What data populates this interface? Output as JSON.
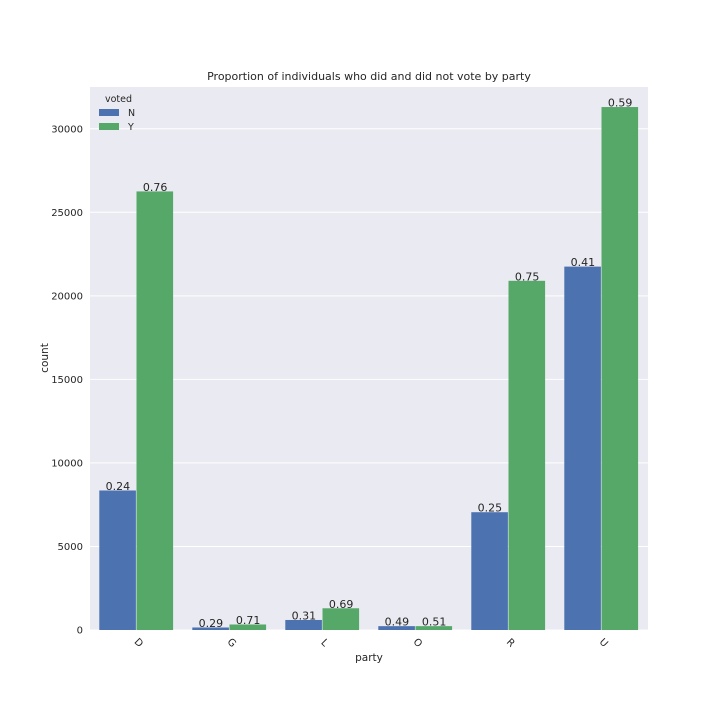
{
  "chart_data": {
    "type": "bar",
    "title": "Proportion of individuals who did and did not vote by party",
    "xlabel": "party",
    "ylabel": "count",
    "categories": [
      "D",
      "G",
      "L",
      "O",
      "R",
      "U"
    ],
    "ylim": [
      0,
      32500
    ],
    "yticks": [
      0,
      5000,
      10000,
      15000,
      20000,
      25000,
      30000
    ],
    "grid": true,
    "legend": {
      "title": "voted",
      "placement": "top-left"
    },
    "series": [
      {
        "name": "N",
        "color": "#4c72b0",
        "values": [
          8350,
          150,
          600,
          230,
          7050,
          21750
        ],
        "labels": [
          "0.24",
          "0.29",
          "0.31",
          "0.49",
          "0.25",
          "0.41"
        ]
      },
      {
        "name": "Y",
        "color": "#55a868",
        "values": [
          26250,
          330,
          1300,
          230,
          20900,
          31300
        ],
        "labels": [
          "0.76",
          "0.71",
          "0.69",
          "0.51",
          "0.75",
          "0.59"
        ]
      }
    ]
  }
}
